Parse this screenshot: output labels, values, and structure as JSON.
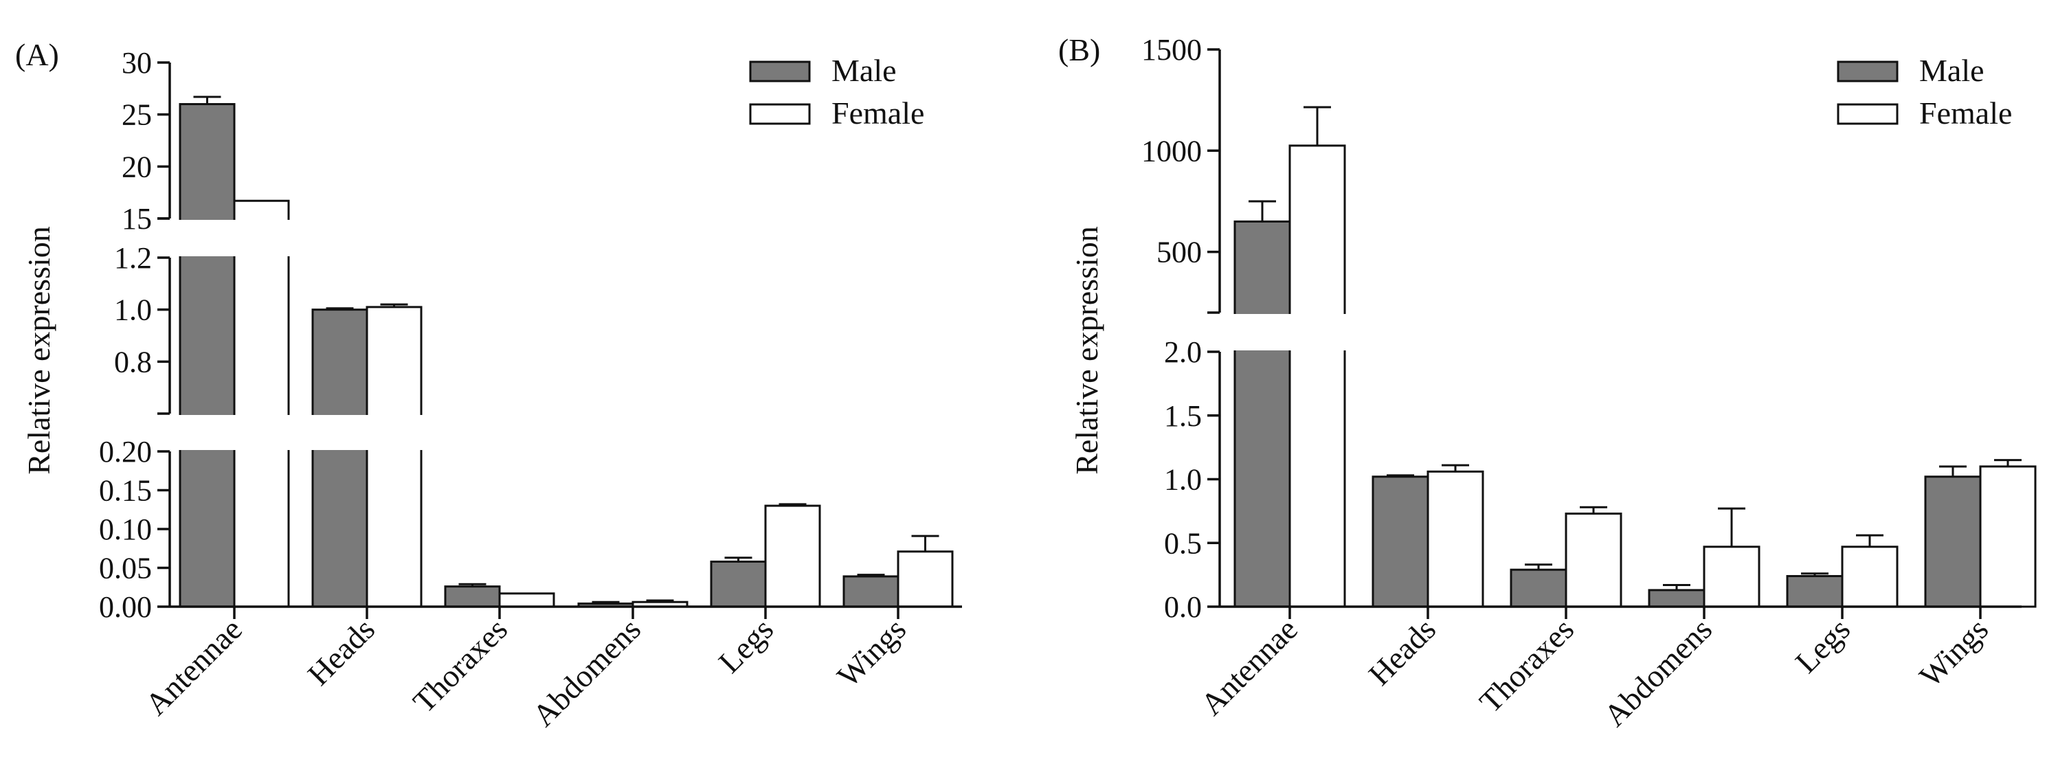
{
  "chart_data": [
    {
      "panel": "(A)",
      "type": "bar",
      "ylabel": "Relative expression",
      "categories": [
        "Antennae",
        "Heads",
        "Thoraxes",
        "Abdomens",
        "Legs",
        "Wings"
      ],
      "series": [
        {
          "name": "Male",
          "color": "#7a7a7a",
          "values": [
            26.0,
            1.0,
            0.026,
            0.004,
            0.058,
            0.039
          ],
          "errors": [
            0.7,
            0.005,
            0.003,
            0.002,
            0.005,
            0.002
          ]
        },
        {
          "name": "Female",
          "color": "#ffffff",
          "values": [
            16.7,
            1.01,
            0.017,
            0.006,
            0.13,
            0.071
          ],
          "errors": [
            0.05,
            0.01,
            0.001,
            0.002,
            0.002,
            0.02
          ]
        }
      ],
      "y_segments": [
        {
          "ylim": [
            0,
            0.2
          ],
          "ticks": [
            "0.00",
            "0.05",
            "0.10",
            "0.15",
            "0.20"
          ]
        },
        {
          "ylim": [
            0.6,
            1.2
          ],
          "ticks": [
            "0.8",
            "1.0",
            "1.2"
          ]
        },
        {
          "ylim": [
            15,
            30
          ],
          "ticks": [
            "15",
            "20",
            "25",
            "30"
          ]
        }
      ],
      "legend_position": "top-right"
    },
    {
      "panel": "(B)",
      "type": "bar",
      "ylabel": "Relative expression",
      "categories": [
        "Antennae",
        "Heads",
        "Thoraxes",
        "Abdomens",
        "Legs",
        "Wings"
      ],
      "series": [
        {
          "name": "Male",
          "color": "#7a7a7a",
          "values": [
            650,
            1.02,
            0.29,
            0.13,
            0.24,
            1.02
          ],
          "errors": [
            100,
            0.01,
            0.04,
            0.04,
            0.02,
            0.08
          ]
        },
        {
          "name": "Female",
          "color": "#ffffff",
          "values": [
            1025,
            1.06,
            0.73,
            0.47,
            0.47,
            1.1
          ],
          "errors": [
            190,
            0.05,
            0.05,
            0.3,
            0.09,
            0.05
          ]
        }
      ],
      "y_segments": [
        {
          "ylim": [
            0,
            2.0
          ],
          "ticks": [
            "0.0",
            "0.5",
            "1.0",
            "1.5",
            "2.0"
          ]
        },
        {
          "ylim": [
            200,
            1500
          ],
          "ticks": [
            "500",
            "1000",
            "1500"
          ]
        }
      ],
      "legend_position": "top-right"
    }
  ]
}
